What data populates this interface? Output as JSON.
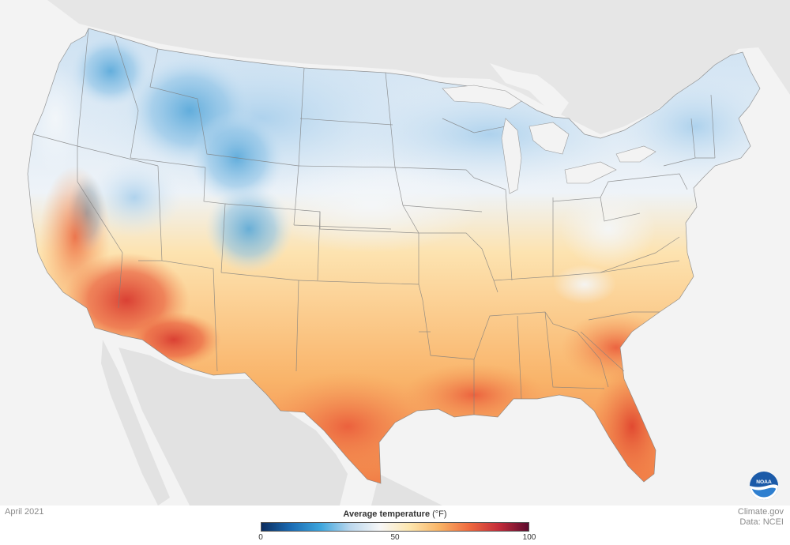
{
  "date_label": "April 2021",
  "credit": {
    "line1": "Climate.gov",
    "line2": "Data: NCEI"
  },
  "legend": {
    "title": "Average temperature",
    "unit": "(°F)",
    "ticks": [
      "0",
      "50",
      "100"
    ],
    "min": 0,
    "max": 100,
    "stops": [
      "#0b2c5e",
      "#1b6cb4",
      "#3ea6dd",
      "#bcd8ee",
      "#f7f7f7",
      "#fde6ae",
      "#f9b466",
      "#ef6a3f",
      "#c42c3a",
      "#5c0a2e"
    ]
  },
  "logo": {
    "icon": "noaa-logo-icon",
    "text": "NOAA"
  }
}
